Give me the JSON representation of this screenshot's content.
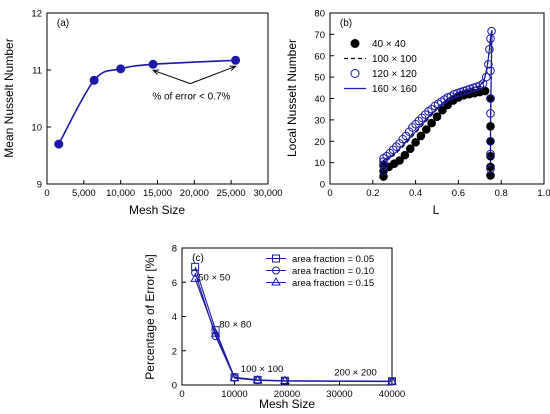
{
  "chart_data": [
    {
      "panel_label": "(a)",
      "type": "line",
      "xlabel": "Mesh Size",
      "ylabel": "Mean Nusselt Number",
      "xlim": [
        0,
        30000
      ],
      "ylim": [
        9,
        12
      ],
      "xticks": [
        0,
        5000,
        10000,
        15000,
        20000,
        25000,
        30000
      ],
      "xtick_labels": [
        "0",
        "5,000",
        "10,000",
        "15,000",
        "20,000",
        "25,000",
        "30,000"
      ],
      "yticks": [
        9,
        10,
        11,
        12
      ],
      "ytick_labels": [
        "9",
        "10",
        "11",
        "12"
      ],
      "series": [
        {
          "color": "#1a1aa6",
          "marker": "filled-circle",
          "x": [
            1600,
            6400,
            10000,
            14400,
            25600
          ],
          "y": [
            9.7,
            10.82,
            11.02,
            11.1,
            11.17
          ]
        }
      ],
      "annotations": [
        {
          "text": "% of error < 0.7%",
          "arrow_targets_x": [
            14400,
            25600
          ],
          "arrow_targets_y": [
            11.1,
            11.17
          ],
          "text_x": 14300,
          "text_y": 10.55
        }
      ]
    },
    {
      "panel_label": "(b)",
      "type": "scatter",
      "xlabel": "L",
      "ylabel": "Local Nusselt Number",
      "xlim": [
        0,
        1
      ],
      "ylim": [
        0,
        80
      ],
      "xticks": [
        0,
        0.2,
        0.4,
        0.6,
        0.8,
        1.0
      ],
      "xtick_labels": [
        "0",
        "0.2",
        "0.4",
        "0.6",
        "0.8",
        "1.0"
      ],
      "yticks": [
        0,
        10,
        20,
        30,
        40,
        50,
        60,
        70,
        80
      ],
      "ytick_labels": [
        "0",
        "10",
        "20",
        "30",
        "40",
        "50",
        "60",
        "70",
        "80"
      ],
      "legend_position": "top-right",
      "series": [
        {
          "name": "40 × 40",
          "style": "filled-circle",
          "color": "#000000",
          "x": [
            0.25,
            0.25,
            0.25,
            0.275,
            0.3,
            0.325,
            0.35,
            0.375,
            0.4,
            0.425,
            0.45,
            0.475,
            0.5,
            0.525,
            0.55,
            0.575,
            0.6,
            0.625,
            0.65,
            0.675,
            0.7,
            0.725,
            0.75,
            0.75,
            0.75,
            0.75,
            0.75,
            0.75
          ],
          "y": [
            3.5,
            6,
            9,
            8,
            9.5,
            11,
            13.5,
            16.5,
            19.5,
            22.5,
            25.5,
            28.5,
            31.5,
            34.5,
            37,
            39,
            40.5,
            41.5,
            42,
            42.5,
            43,
            43.5,
            40,
            27,
            20,
            13,
            8,
            4
          ]
        },
        {
          "name": "100 × 100",
          "style": "dashed-line",
          "color": "#000000",
          "x": [
            0.25,
            0.25,
            0.3,
            0.35,
            0.4,
            0.45,
            0.5,
            0.55,
            0.6,
            0.65,
            0.7,
            0.72,
            0.735,
            0.745,
            0.75,
            0.755,
            0.75,
            0.75
          ],
          "y": [
            5,
            10.5,
            13.5,
            18.5,
            24,
            29.5,
            35,
            39.5,
            42.5,
            44,
            45.5,
            48,
            55,
            63,
            68,
            60,
            30,
            10
          ]
        },
        {
          "name": "120 × 120",
          "style": "open-circle",
          "color": "#1a1aa6",
          "x": [
            0.25,
            0.25,
            0.25,
            0.25,
            0.265,
            0.28,
            0.295,
            0.31,
            0.325,
            0.34,
            0.355,
            0.37,
            0.385,
            0.4,
            0.415,
            0.43,
            0.445,
            0.46,
            0.475,
            0.49,
            0.505,
            0.52,
            0.535,
            0.55,
            0.565,
            0.58,
            0.595,
            0.61,
            0.625,
            0.64,
            0.655,
            0.67,
            0.685,
            0.7,
            0.715,
            0.73,
            0.74,
            0.745,
            0.75,
            0.755,
            0.75,
            0.75,
            0.75,
            0.75,
            0.75,
            0.75
          ],
          "y": [
            6,
            8.5,
            10.5,
            12,
            13,
            14.5,
            16,
            17.5,
            19,
            21,
            22.5,
            24.5,
            26.5,
            28,
            29.5,
            31,
            32.5,
            34,
            35,
            36.5,
            37.5,
            38.5,
            39.5,
            40.5,
            41,
            42,
            42.5,
            43,
            43.5,
            44,
            44.5,
            45,
            45.5,
            46,
            47,
            50,
            56,
            63,
            68,
            71.5,
            53,
            40,
            33,
            20,
            14,
            7
          ]
        },
        {
          "name": "160 × 160",
          "style": "solid-line",
          "color": "#1a1aa6",
          "x": [
            0.25,
            0.25,
            0.3,
            0.35,
            0.4,
            0.45,
            0.5,
            0.55,
            0.6,
            0.65,
            0.7,
            0.72,
            0.735,
            0.745,
            0.752,
            0.757,
            0.753,
            0.75,
            0.75
          ],
          "y": [
            5,
            11,
            14,
            19,
            24.5,
            30,
            35.5,
            40,
            43,
            44.5,
            46,
            48.5,
            55,
            63,
            70,
            72,
            50,
            25,
            5
          ]
        }
      ]
    },
    {
      "panel_label": "(c)",
      "type": "line",
      "xlabel": "Mesh Size",
      "ylabel": "Percentage of Error [%]",
      "xlim": [
        0,
        40000
      ],
      "ylim": [
        0,
        8
      ],
      "xticks": [
        0,
        10000,
        20000,
        30000,
        40000
      ],
      "xtick_labels": [
        "0",
        "10000",
        "20000",
        "30000",
        "40000"
      ],
      "yticks": [
        0,
        2,
        4,
        6,
        8
      ],
      "ytick_labels": [
        "0",
        "2",
        "4",
        "6",
        "8"
      ],
      "legend_position": "top-right",
      "series": [
        {
          "name": "area fraction = 0.05",
          "marker": "open-square",
          "color": "#1a1aa6",
          "x": [
            2500,
            6400,
            10000,
            14400,
            19600,
            40000
          ],
          "y": [
            6.9,
            3.2,
            0.45,
            0.3,
            0.25,
            0.22
          ]
        },
        {
          "name": "area fraction = 0.10",
          "marker": "open-circle",
          "color": "#1a1aa6",
          "x": [
            2500,
            6400,
            10000,
            14400,
            19600,
            40000
          ],
          "y": [
            6.55,
            2.85,
            0.42,
            0.28,
            0.24,
            0.21
          ]
        },
        {
          "name": "area fraction = 0.15",
          "marker": "open-triangle",
          "color": "#1a1aa6",
          "x": [
            2500,
            6400,
            10000,
            14400,
            19600,
            40000
          ],
          "y": [
            6.2,
            3.0,
            0.4,
            0.27,
            0.23,
            0.2
          ]
        }
      ],
      "annotations": [
        {
          "text": "50 × 50",
          "x": 3100,
          "y": 6.1
        },
        {
          "text": "80 × 80",
          "x": 7100,
          "y": 3.35
        },
        {
          "text": "100 × 100",
          "x": 11200,
          "y": 0.75
        },
        {
          "text": "200 × 200",
          "x": 29000,
          "y": 0.55
        }
      ]
    }
  ]
}
